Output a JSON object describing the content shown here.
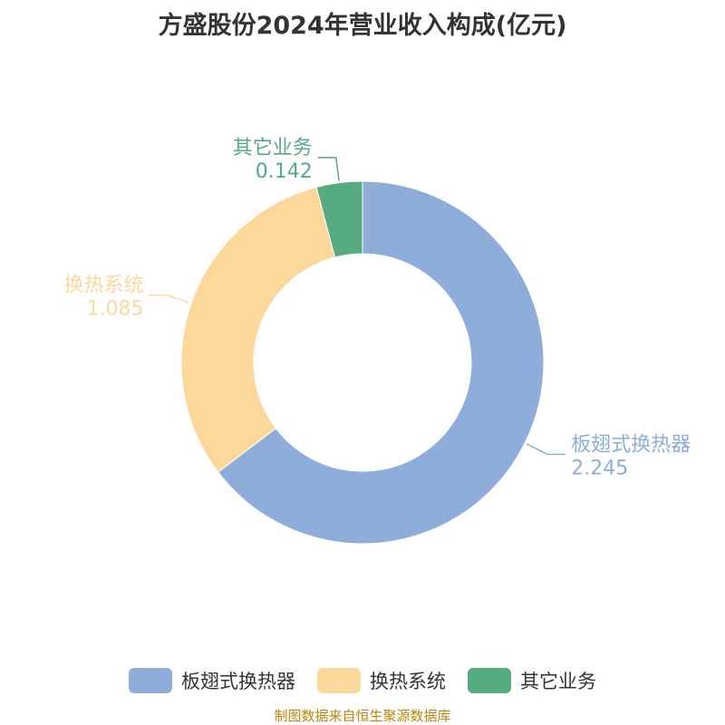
{
  "title": "方盛股份2024年营业收入构成(亿元)",
  "source": "制图数据来自恒生聚源数据库",
  "colors": {
    "source_text": "#b8860b"
  },
  "chart_data": {
    "type": "pie",
    "donut": true,
    "categories": [
      "板翅式换热器",
      "换热系统",
      "其它业务"
    ],
    "values": [
      2.245,
      1.085,
      0.142
    ],
    "value_labels": [
      "2.245",
      "1.085",
      "0.142"
    ],
    "colors": [
      "#8eadd9",
      "#fdd89b",
      "#56ab7f"
    ],
    "legend_position": "bottom"
  }
}
